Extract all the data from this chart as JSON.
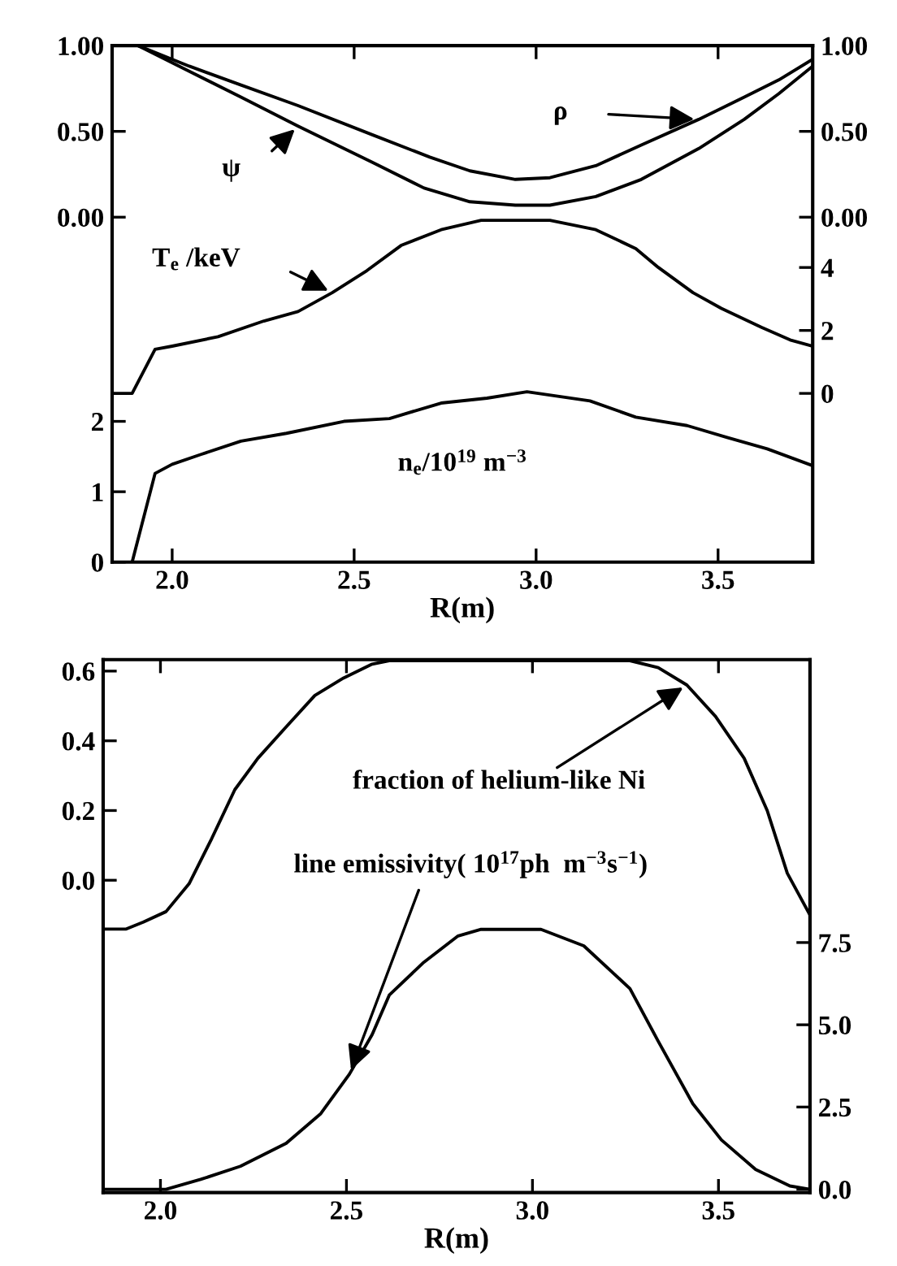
{
  "chart_data": [
    {
      "type": "line",
      "xlabel": "R(m)",
      "xlim": [
        1.835,
        3.76
      ],
      "xticks": [
        {
          "value": 2.0,
          "label": "2.0"
        },
        {
          "value": 2.5,
          "label": "2.5"
        },
        {
          "value": 3.0,
          "label": "3.0"
        },
        {
          "value": 3.5,
          "label": "3.5"
        }
      ],
      "ylim": [
        -2.01,
        1.0
      ],
      "yticks": [
        {
          "value": 0,
          "label": "0.00"
        },
        {
          "value": 0.5,
          "label": "0.50"
        },
        {
          "value": 1,
          "label": "1.00"
        }
      ],
      "y2lim": [
        -5.36,
        11.05
      ],
      "y2ticks": [
        0,
        2,
        4
      ],
      "y3lim": [
        0,
        7.34
      ],
      "y3ticks": [
        0,
        1,
        2
      ],
      "line_style": "solid",
      "marker": "none",
      "series": [
        {
          "name": "ψ",
          "color": "#000000",
          "axis": "y",
          "x": [
            1.906,
            2.047,
            2.189,
            2.346,
            2.472,
            2.55,
            2.692,
            2.818,
            2.943,
            3.038,
            3.164,
            3.289,
            3.447,
            3.572,
            3.667,
            3.76
          ],
          "values": [
            1.0,
            0.85,
            0.7,
            0.53,
            0.4,
            0.32,
            0.17,
            0.09,
            0.07,
            0.07,
            0.12,
            0.22,
            0.4,
            0.57,
            0.72,
            0.88
          ]
        },
        {
          "name": "ρ",
          "color": "#000000",
          "axis": "y",
          "x": [
            1.906,
            2.047,
            2.189,
            2.346,
            2.55,
            2.708,
            2.818,
            2.943,
            3.038,
            3.164,
            3.289,
            3.447,
            3.572,
            3.667,
            3.76
          ],
          "values": [
            1.0,
            0.88,
            0.77,
            0.65,
            0.48,
            0.35,
            0.27,
            0.22,
            0.23,
            0.3,
            0.42,
            0.57,
            0.7,
            0.8,
            0.92
          ]
        },
        {
          "name": "T$_{e}$ /keV",
          "color": "#000000",
          "axis": "y2",
          "x": [
            1.835,
            1.89,
            1.953,
            2.0,
            2.126,
            2.252,
            2.346,
            2.44,
            2.535,
            2.629,
            2.739,
            2.849,
            3.038,
            3.164,
            3.274,
            3.336,
            3.431,
            3.509,
            3.619,
            3.698,
            3.76
          ],
          "values": [
            0.0,
            0.0,
            1.4,
            1.5,
            1.8,
            2.3,
            2.6,
            3.2,
            3.9,
            4.7,
            5.2,
            5.5,
            5.5,
            5.2,
            4.6,
            4.0,
            3.2,
            2.7,
            2.1,
            1.7,
            1.5
          ]
        },
        {
          "name": "n$_{e}$/10$^{19}$ m$^{−3}$",
          "color": "#000000",
          "axis": "y3",
          "x": [
            1.89,
            1.953,
            2.0,
            2.079,
            2.189,
            2.314,
            2.472,
            2.597,
            2.739,
            2.865,
            2.975,
            3.148,
            3.274,
            3.415,
            3.525,
            3.635,
            3.76
          ],
          "values": [
            0.0,
            1.26,
            1.39,
            1.53,
            1.72,
            1.83,
            2.0,
            2.04,
            2.26,
            2.33,
            2.42,
            2.29,
            2.06,
            1.94,
            1.77,
            1.61,
            1.37
          ]
        }
      ]
    },
    {
      "type": "line",
      "xlabel": "R(m)",
      "xlim": [
        1.846,
        3.746
      ],
      "xticks": [
        {
          "value": 2.0,
          "label": "2.0"
        },
        {
          "value": 2.5,
          "label": "2.5"
        },
        {
          "value": 3.0,
          "label": "3.0"
        },
        {
          "value": 3.5,
          "label": "3.5"
        }
      ],
      "ylim": [
        -0.896,
        0.633
      ],
      "yticks": [
        {
          "value": 0,
          "label": "0.0"
        },
        0.2,
        0.4,
        0.6
      ],
      "y2lim": [
        -0.1,
        16.1
      ],
      "y2ticks": [
        {
          "value": 0,
          "label": "0.0"
        },
        2.5,
        {
          "value": 5,
          "label": "5.0"
        },
        7.5
      ],
      "line_style": "solid",
      "marker": "none",
      "series": [
        {
          "name": "fraction of helium-like Ni",
          "color": "#000000",
          "axis": "y",
          "x": [
            1.846,
            1.908,
            1.954,
            2.015,
            2.077,
            2.138,
            2.2,
            2.262,
            2.338,
            2.415,
            2.492,
            2.569,
            2.615,
            3.262,
            3.338,
            3.415,
            3.492,
            3.569,
            3.631,
            3.685,
            3.746
          ],
          "values": [
            -0.14,
            -0.14,
            -0.12,
            -0.09,
            -0.01,
            0.12,
            0.26,
            0.35,
            0.44,
            0.53,
            0.58,
            0.62,
            0.63,
            0.63,
            0.61,
            0.56,
            0.47,
            0.35,
            0.2,
            0.02,
            -0.1
          ]
        },
        {
          "name": "line emissivity( 10$^{17}$ph  m$^{−3}$s$^{−1}$)",
          "color": "#000000",
          "axis": "y2",
          "x": [
            1.846,
            2.015,
            2.108,
            2.215,
            2.338,
            2.431,
            2.508,
            2.569,
            2.615,
            2.708,
            2.8,
            2.862,
            3.023,
            3.138,
            3.262,
            3.338,
            3.431,
            3.508,
            3.6,
            3.692,
            3.746
          ],
          "values": [
            0.0,
            0.0,
            0.3,
            0.7,
            1.4,
            2.3,
            3.5,
            4.7,
            5.9,
            6.9,
            7.7,
            7.9,
            7.9,
            7.4,
            6.1,
            4.5,
            2.6,
            1.5,
            0.6,
            0.1,
            0.0
          ]
        }
      ]
    }
  ]
}
